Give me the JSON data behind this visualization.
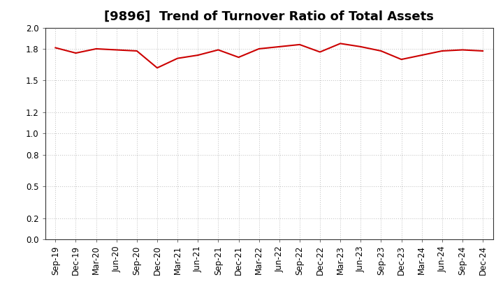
{
  "title": "[9896]  Trend of Turnover Ratio of Total Assets",
  "x_labels": [
    "Sep-19",
    "Dec-19",
    "Mar-20",
    "Jun-20",
    "Sep-20",
    "Dec-20",
    "Mar-21",
    "Jun-21",
    "Sep-21",
    "Dec-21",
    "Mar-22",
    "Jun-22",
    "Sep-22",
    "Dec-22",
    "Mar-23",
    "Jun-23",
    "Sep-23",
    "Dec-23",
    "Mar-24",
    "Jun-24",
    "Sep-24",
    "Dec-24"
  ],
  "values": [
    1.81,
    1.76,
    1.8,
    1.79,
    1.78,
    1.62,
    1.71,
    1.74,
    1.79,
    1.72,
    1.8,
    1.82,
    1.84,
    1.77,
    1.85,
    1.82,
    1.78,
    1.7,
    1.74,
    1.78,
    1.79,
    1.78
  ],
  "line_color": "#cc0000",
  "line_width": 1.5,
  "ylim": [
    0.0,
    2.0
  ],
  "yticks": [
    0.0,
    0.2,
    0.5,
    0.8,
    1.0,
    1.2,
    1.5,
    1.8,
    2.0
  ],
  "grid_color": "#bbbbbb",
  "background_color": "#ffffff",
  "plot_bg_color": "#ffffff",
  "title_fontsize": 13,
  "tick_fontsize": 8.5
}
